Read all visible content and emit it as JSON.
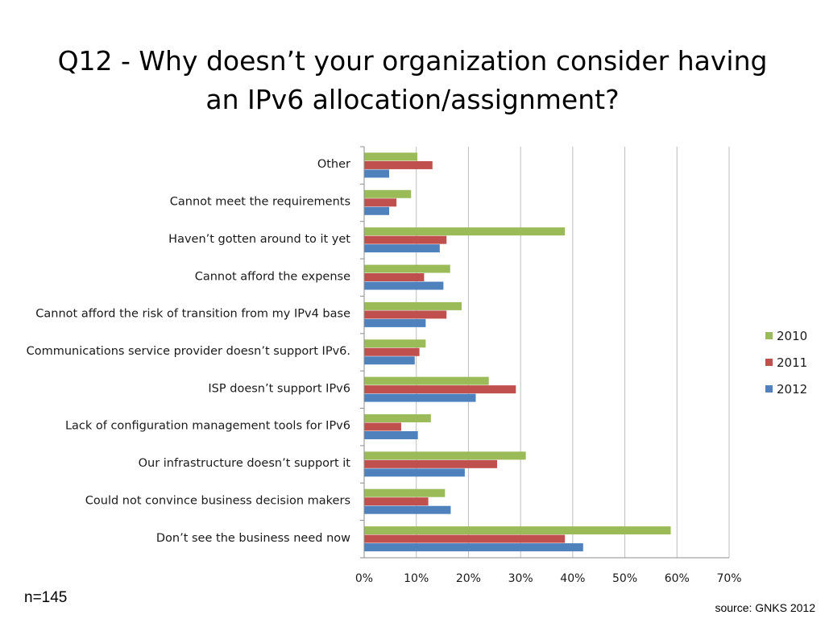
{
  "slide": {
    "title_line1": "Q12 - Why doesn’t your organization consider having",
    "title_line2": "an IPv6 allocation/assignment?",
    "sample_size": "n=145",
    "source": "source: GNKS 2012"
  },
  "chart_data": {
    "type": "bar",
    "orientation": "horizontal",
    "categories": [
      "Other",
      "Cannot meet the requirements",
      "Haven’t gotten around to it yet",
      "Cannot afford the expense",
      "Cannot afford the risk of transition from my IPv4 base",
      "Communications service provider doesn’t support IPv6.",
      "ISP doesn’t support IPv6",
      "Lack of  configuration management tools for IPv6",
      "Our infrastructure doesn’t support it",
      "Could not convince business decision makers",
      "Don’t see the business need now"
    ],
    "series": [
      {
        "name": "2010",
        "color": "#9BBB59",
        "values": [
          10.2,
          9.0,
          38.5,
          16.5,
          18.7,
          11.8,
          23.9,
          12.8,
          31.0,
          15.5,
          58.8
        ]
      },
      {
        "name": "2011",
        "color": "#C0504D",
        "values": [
          13.1,
          6.2,
          15.8,
          11.5,
          15.8,
          10.6,
          29.1,
          7.1,
          25.5,
          12.3,
          38.5
        ]
      },
      {
        "name": "2012",
        "color": "#4F81BD",
        "values": [
          4.8,
          4.8,
          14.5,
          15.2,
          11.8,
          9.7,
          21.4,
          10.3,
          19.3,
          16.6,
          42.0
        ]
      }
    ],
    "xlim": [
      0,
      70
    ],
    "x_ticks": [
      "0%",
      "10%",
      "20%",
      "30%",
      "40%",
      "50%",
      "60%",
      "70%"
    ],
    "grid": "vertical",
    "legend": "right"
  }
}
